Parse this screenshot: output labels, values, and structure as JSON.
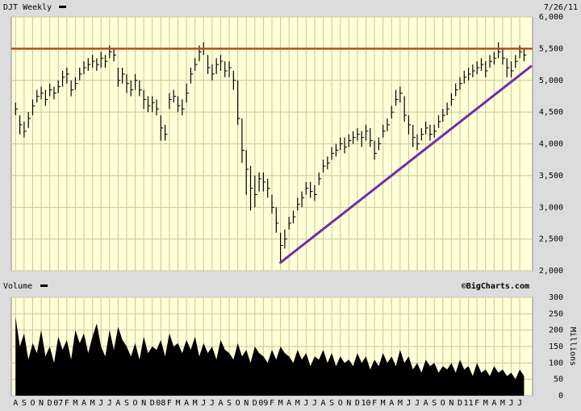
{
  "chart_data": [
    {
      "type": "ohlc",
      "title": "DJT Weekly",
      "date": "7/26/11",
      "xlim": [
        -0.5,
        60.5
      ],
      "xticks": [
        {
          "value": 0,
          "label": "A"
        },
        {
          "value": 1,
          "label": "S"
        },
        {
          "value": 2,
          "label": "O"
        },
        {
          "value": 3,
          "label": "N"
        },
        {
          "value": 4,
          "label": "D"
        },
        {
          "value": 5,
          "label": "07"
        },
        {
          "value": 6,
          "label": "F"
        },
        {
          "value": 7,
          "label": "M"
        },
        {
          "value": 8,
          "label": "A"
        },
        {
          "value": 9,
          "label": "M"
        },
        {
          "value": 10,
          "label": "J"
        },
        {
          "value": 11,
          "label": "J"
        },
        {
          "value": 12,
          "label": "A"
        },
        {
          "value": 13,
          "label": "S"
        },
        {
          "value": 14,
          "label": "O"
        },
        {
          "value": 15,
          "label": "N"
        },
        {
          "value": 16,
          "label": "D"
        },
        {
          "value": 17,
          "label": "08"
        },
        {
          "value": 18,
          "label": "F"
        },
        {
          "value": 19,
          "label": "M"
        },
        {
          "value": 20,
          "label": "A"
        },
        {
          "value": 21,
          "label": "M"
        },
        {
          "value": 22,
          "label": "J"
        },
        {
          "value": 23,
          "label": "J"
        },
        {
          "value": 24,
          "label": "A"
        },
        {
          "value": 25,
          "label": "S"
        },
        {
          "value": 26,
          "label": "O"
        },
        {
          "value": 27,
          "label": "N"
        },
        {
          "value": 28,
          "label": "D"
        },
        {
          "value": 29,
          "label": "09"
        },
        {
          "value": 30,
          "label": "F"
        },
        {
          "value": 31,
          "label": "M"
        },
        {
          "value": 32,
          "label": "A"
        },
        {
          "value": 33,
          "label": "M"
        },
        {
          "value": 34,
          "label": "J"
        },
        {
          "value": 35,
          "label": "J"
        },
        {
          "value": 36,
          "label": "A"
        },
        {
          "value": 37,
          "label": "S"
        },
        {
          "value": 38,
          "label": "O"
        },
        {
          "value": 39,
          "label": "N"
        },
        {
          "value": 40,
          "label": "D"
        },
        {
          "value": 41,
          "label": "10"
        },
        {
          "value": 42,
          "label": "F"
        },
        {
          "value": 43,
          "label": "M"
        },
        {
          "value": 44,
          "label": "A"
        },
        {
          "value": 45,
          "label": "M"
        },
        {
          "value": 46,
          "label": "J"
        },
        {
          "value": 47,
          "label": "J"
        },
        {
          "value": 48,
          "label": "A"
        },
        {
          "value": 49,
          "label": "S"
        },
        {
          "value": 50,
          "label": "O"
        },
        {
          "value": 51,
          "label": "N"
        },
        {
          "value": 52,
          "label": "D"
        },
        {
          "value": 53,
          "label": "11"
        },
        {
          "value": 54,
          "label": "F"
        },
        {
          "value": 55,
          "label": "M"
        },
        {
          "value": 56,
          "label": "A"
        },
        {
          "value": 57,
          "label": "M"
        },
        {
          "value": 58,
          "label": "J"
        },
        {
          "value": 59,
          "label": "J"
        }
      ],
      "ylim": [
        2000,
        6000
      ],
      "yticks": [
        {
          "value": 2000,
          "label": "2,000"
        },
        {
          "value": 2500,
          "label": "2,500"
        },
        {
          "value": 3000,
          "label": "3,000"
        },
        {
          "value": 3500,
          "label": "3,500"
        },
        {
          "value": 4000,
          "label": "4,000"
        },
        {
          "value": 4500,
          "label": "4,500"
        },
        {
          "value": 5000,
          "label": "5,000"
        },
        {
          "value": 5500,
          "label": "5,500"
        },
        {
          "value": 6000,
          "label": "6,000"
        }
      ],
      "grid": true,
      "color": "#000000",
      "x": [
        0,
        0.5,
        1,
        1.5,
        2,
        2.5,
        3,
        3.5,
        4,
        4.5,
        5,
        5.5,
        6,
        6.5,
        7,
        7.5,
        8,
        8.5,
        9,
        9.5,
        10,
        10.5,
        11,
        11.5,
        12,
        12.5,
        13,
        13.5,
        14,
        14.5,
        15,
        15.5,
        16,
        16.5,
        17,
        17.5,
        18,
        18.5,
        19,
        19.5,
        20,
        20.5,
        21,
        21.5,
        22,
        22.5,
        23,
        23.5,
        24,
        24.5,
        25,
        25.5,
        26,
        26.5,
        27,
        27.5,
        28,
        28.5,
        29,
        29.5,
        30,
        30.5,
        31,
        31.5,
        32,
        32.5,
        33,
        33.5,
        34,
        34.5,
        35,
        35.5,
        36,
        36.5,
        37,
        37.5,
        38,
        38.5,
        39,
        39.5,
        40,
        40.5,
        41,
        41.5,
        42,
        42.5,
        43,
        43.5,
        44,
        44.5,
        45,
        45.5,
        46,
        46.5,
        47,
        47.5,
        48,
        48.5,
        49,
        49.5,
        50,
        50.5,
        51,
        51.5,
        52,
        52.5,
        53,
        53.5,
        54,
        54.5,
        55,
        55.5,
        56,
        56.5,
        57,
        57.5,
        58,
        58.5,
        59,
        59.5
      ],
      "close": [
        4550,
        4300,
        4200,
        4400,
        4600,
        4750,
        4800,
        4700,
        4850,
        4800,
        4900,
        5050,
        5100,
        4850,
        4950,
        5100,
        5200,
        5250,
        5300,
        5250,
        5350,
        5300,
        5450,
        5400,
        5000,
        5100,
        4950,
        4850,
        5000,
        4850,
        4700,
        4600,
        4650,
        4550,
        4250,
        4150,
        4700,
        4750,
        4600,
        4550,
        4800,
        5100,
        5250,
        5450,
        5500,
        5200,
        5100,
        5250,
        5300,
        5150,
        5200,
        5000,
        4400,
        3900,
        3600,
        3300,
        3200,
        3450,
        3400,
        3300,
        3000,
        2750,
        2400,
        2500,
        2750,
        2850,
        3050,
        3150,
        3300,
        3250,
        3200,
        3450,
        3650,
        3700,
        3850,
        3900,
        4000,
        3950,
        4050,
        4100,
        4150,
        4100,
        4200,
        4050,
        3850,
        4000,
        4200,
        4300,
        4500,
        4700,
        4800,
        4450,
        4300,
        4100,
        4000,
        4150,
        4250,
        4150,
        4200,
        4350,
        4450,
        4550,
        4700,
        4850,
        4950,
        5050,
        5100,
        5150,
        5200,
        5250,
        5150,
        5300,
        5350,
        5450,
        5350,
        5200,
        5150,
        5300,
        5450,
        5400
      ],
      "high": [
        4650,
        4450,
        4350,
        4500,
        4700,
        4850,
        4900,
        4850,
        4950,
        4900,
        5000,
        5150,
        5200,
        5000,
        5050,
        5200,
        5300,
        5350,
        5400,
        5350,
        5450,
        5400,
        5550,
        5500,
        5200,
        5200,
        5100,
        5000,
        5100,
        5000,
        4850,
        4750,
        4750,
        4700,
        4450,
        4300,
        4800,
        4850,
        4750,
        4700,
        4950,
        5200,
        5350,
        5550,
        5600,
        5400,
        5250,
        5350,
        5400,
        5300,
        5300,
        5150,
        5000,
        4400,
        3900,
        3650,
        3500,
        3550,
        3550,
        3450,
        3200,
        3000,
        2600,
        2650,
        2850,
        2950,
        3150,
        3250,
        3400,
        3400,
        3350,
        3550,
        3750,
        3800,
        3950,
        4000,
        4100,
        4100,
        4150,
        4200,
        4250,
        4200,
        4300,
        4250,
        4050,
        4100,
        4300,
        4400,
        4600,
        4850,
        4900,
        4750,
        4450,
        4300,
        4150,
        4250,
        4350,
        4300,
        4300,
        4450,
        4550,
        4650,
        4800,
        4950,
        5050,
        5150,
        5200,
        5250,
        5300,
        5350,
        5300,
        5400,
        5450,
        5600,
        5500,
        5350,
        5300,
        5400,
        5550,
        5500
      ],
      "low": [
        4450,
        4150,
        4100,
        4250,
        4450,
        4650,
        4700,
        4600,
        4750,
        4700,
        4800,
        4900,
        4950,
        4750,
        4850,
        5000,
        5100,
        5150,
        5200,
        5150,
        5200,
        5200,
        5350,
        5300,
        4900,
        4950,
        4800,
        4750,
        4850,
        4750,
        4550,
        4500,
        4500,
        4450,
        4050,
        4050,
        4550,
        4650,
        4500,
        4450,
        4650,
        4950,
        5150,
        5300,
        5400,
        5100,
        5000,
        5100,
        5150,
        5050,
        5050,
        4850,
        4300,
        3700,
        3200,
        2950,
        3000,
        3250,
        3250,
        3150,
        2900,
        2600,
        2150,
        2350,
        2650,
        2750,
        2950,
        3000,
        3200,
        3150,
        3100,
        3350,
        3550,
        3600,
        3750,
        3800,
        3900,
        3850,
        3950,
        4000,
        4050,
        3950,
        4050,
        3950,
        3750,
        3900,
        4100,
        4200,
        4400,
        4600,
        4650,
        4350,
        4150,
        3950,
        3900,
        4050,
        4150,
        4050,
        4100,
        4250,
        4350,
        4450,
        4600,
        4750,
        4850,
        4950,
        5000,
        5050,
        5100,
        5150,
        5050,
        5200,
        5250,
        5350,
        5250,
        5050,
        5050,
        5200,
        5350,
        5300
      ],
      "hline": {
        "value": 5500,
        "color": "#b0501e"
      },
      "trendline": {
        "x": [
          31,
          60.3
        ],
        "y": [
          2130,
          5220
        ],
        "color": "#7030a8"
      }
    },
    {
      "type": "area",
      "title": "Volume",
      "source": "©BigCharts.com",
      "y_label": "Millions",
      "xlim": [
        -0.5,
        60.5
      ],
      "ylim": [
        0,
        300
      ],
      "yticks": [
        0,
        50,
        100,
        150,
        200,
        250,
        300
      ],
      "grid": true,
      "color": "#000000",
      "x": [
        0,
        0.5,
        1,
        1.5,
        2,
        2.5,
        3,
        3.5,
        4,
        4.5,
        5,
        5.5,
        6,
        6.5,
        7,
        7.5,
        8,
        8.5,
        9,
        9.5,
        10,
        10.5,
        11,
        11.5,
        12,
        12.5,
        13,
        13.5,
        14,
        14.5,
        15,
        15.5,
        16,
        16.5,
        17,
        17.5,
        18,
        18.5,
        19,
        19.5,
        20,
        20.5,
        21,
        21.5,
        22,
        22.5,
        23,
        23.5,
        24,
        24.5,
        25,
        25.5,
        26,
        26.5,
        27,
        27.5,
        28,
        28.5,
        29,
        29.5,
        30,
        30.5,
        31,
        31.5,
        32,
        32.5,
        33,
        33.5,
        34,
        34.5,
        35,
        35.5,
        36,
        36.5,
        37,
        37.5,
        38,
        38.5,
        39,
        39.5,
        40,
        40.5,
        41,
        41.5,
        42,
        42.5,
        43,
        43.5,
        44,
        44.5,
        45,
        45.5,
        46,
        46.5,
        47,
        47.5,
        48,
        48.5,
        49,
        49.5,
        50,
        50.5,
        51,
        51.5,
        52,
        52.5,
        53,
        53.5,
        54,
        54.5,
        55,
        55.5,
        56,
        56.5,
        57,
        57.5,
        58,
        58.5,
        59,
        59.5
      ],
      "values": [
        240,
        150,
        190,
        110,
        160,
        130,
        200,
        120,
        150,
        100,
        180,
        140,
        170,
        110,
        200,
        160,
        190,
        130,
        180,
        220,
        150,
        120,
        200,
        140,
        210,
        170,
        150,
        120,
        160,
        110,
        180,
        130,
        150,
        140,
        170,
        120,
        190,
        150,
        160,
        130,
        170,
        140,
        180,
        120,
        160,
        130,
        150,
        110,
        170,
        140,
        130,
        110,
        160,
        120,
        140,
        100,
        150,
        130,
        120,
        100,
        140,
        110,
        150,
        130,
        120,
        100,
        140,
        110,
        130,
        90,
        120,
        110,
        140,
        100,
        130,
        90,
        120,
        100,
        110,
        90,
        130,
        100,
        120,
        80,
        110,
        90,
        130,
        100,
        120,
        90,
        140,
        100,
        120,
        80,
        100,
        70,
        110,
        90,
        100,
        70,
        90,
        80,
        100,
        70,
        110,
        80,
        90,
        60,
        100,
        70,
        80,
        60,
        90,
        70,
        80,
        60,
        70,
        50,
        80,
        60
      ]
    }
  ]
}
